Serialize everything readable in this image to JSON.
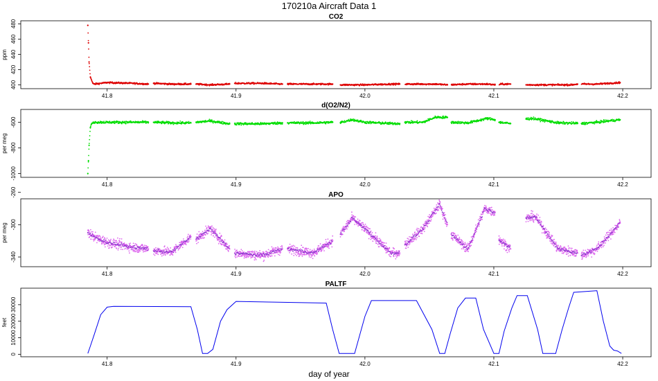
{
  "figure": {
    "title": "170210a   Aircraft Data 1",
    "xlabel": "day of year"
  },
  "chart_data": [
    {
      "type": "scatter",
      "title": "CO2",
      "ylabel": "ppm",
      "color": "#dd0000",
      "xlim": [
        41.733,
        42.222
      ],
      "ylim": [
        395,
        484
      ],
      "x_ticks": [
        "41.8",
        "41.9",
        "42.0",
        "42.1",
        "42.2"
      ],
      "y_ticks": [
        "400",
        "420",
        "440",
        "460",
        "480"
      ],
      "series": [
        {
          "x": [
            41.785,
            41.7855,
            41.786,
            41.787,
            41.789,
            41.79,
            41.8,
            41.82,
            41.832,
            41.836,
            41.85,
            41.865,
            41.869,
            41.88,
            41.895,
            41.899,
            41.92,
            41.936,
            41.94,
            41.96,
            41.975,
            41.981,
            42.0,
            42.02,
            42.027,
            42.04,
            42.055,
            42.064,
            42.08,
            42.095,
            42.101,
            42.106,
            42.113,
            42.125,
            42.14,
            42.16,
            42.165,
            42.18,
            42.198
          ],
          "y": [
            478,
            455,
            430,
            410,
            402,
            401,
            403,
            402,
            401,
            402,
            401,
            401,
            401,
            400,
            401,
            402,
            402,
            401,
            401,
            401,
            401,
            400,
            400,
            401,
            401,
            401,
            401,
            400,
            401,
            401,
            400,
            401,
            401,
            400,
            400,
            400,
            401,
            401,
            403
          ]
        }
      ],
      "gaps": [
        [
          41.832,
          41.836
        ],
        [
          41.865,
          41.869
        ],
        [
          41.895,
          41.899
        ],
        [
          41.936,
          41.94
        ],
        [
          41.975,
          41.981
        ],
        [
          42.027,
          42.031
        ],
        [
          42.064,
          42.067
        ],
        [
          42.101,
          42.104
        ],
        [
          42.113,
          42.125
        ],
        [
          42.165,
          42.168
        ]
      ]
    },
    {
      "type": "scatter",
      "title": "d(O2/N2)",
      "ylabel": "per meg",
      "color": "#00dd00",
      "xlim": [
        41.733,
        42.222
      ],
      "ylim": [
        -1030,
        -500
      ],
      "x_ticks": [
        "41.8",
        "41.9",
        "42.0",
        "42.1",
        "42.2"
      ],
      "y_ticks": [
        "-1000",
        "-800",
        "-600"
      ],
      "series": [
        {
          "x": [
            41.785,
            41.7855,
            41.786,
            41.787,
            41.788,
            41.79,
            41.8,
            41.82,
            41.832,
            41.836,
            41.85,
            41.865,
            41.869,
            41.88,
            41.895,
            41.899,
            41.92,
            41.936,
            41.94,
            41.96,
            41.975,
            41.981,
            41.99,
            42.0,
            42.02,
            42.027,
            42.031,
            42.045,
            42.055,
            42.064,
            42.067,
            42.08,
            42.095,
            42.101,
            42.104,
            42.113,
            42.125,
            42.13,
            42.15,
            42.165,
            42.168,
            42.18,
            42.198
          ],
          "y": [
            -1000,
            -900,
            -780,
            -640,
            -610,
            -600,
            -600,
            -600,
            -600,
            -600,
            -605,
            -605,
            -600,
            -590,
            -612,
            -612,
            -612,
            -605,
            -605,
            -605,
            -600,
            -602,
            -580,
            -600,
            -610,
            -610,
            -600,
            -600,
            -560,
            -562,
            -600,
            -605,
            -570,
            -580,
            -600,
            -610,
            -575,
            -570,
            -605,
            -608,
            -610,
            -600,
            -580
          ]
        }
      ],
      "gaps": [
        [
          41.832,
          41.836
        ],
        [
          41.865,
          41.869
        ],
        [
          41.895,
          41.899
        ],
        [
          41.936,
          41.94
        ],
        [
          41.975,
          41.981
        ],
        [
          42.027,
          42.031
        ],
        [
          42.064,
          42.067
        ],
        [
          42.101,
          42.104
        ],
        [
          42.113,
          42.125
        ],
        [
          42.165,
          42.168
        ]
      ]
    },
    {
      "type": "scatter",
      "title": "APO",
      "ylabel": "per meg",
      "color": "#dd66ee",
      "xlim": [
        41.733,
        42.222
      ],
      "ylim": [
        -352,
        -268
      ],
      "x_ticks": [
        "41.8",
        "41.9",
        "42.0",
        "42.1",
        "42.2"
      ],
      "y_ticks": [
        "-340",
        "-300",
        "-260"
      ],
      "series": [
        {
          "x": [
            41.785,
            41.79,
            41.8,
            41.82,
            41.832,
            41.836,
            41.85,
            41.865,
            41.869,
            41.88,
            41.895,
            41.899,
            41.92,
            41.936,
            41.94,
            41.96,
            41.975,
            41.981,
            41.99,
            42.0,
            42.02,
            42.027,
            42.031,
            42.045,
            42.058,
            42.064,
            42.067,
            42.08,
            42.093,
            42.101,
            42.104,
            42.113,
            42.125,
            42.132,
            42.15,
            42.165,
            42.168,
            42.18,
            42.198
          ],
          "y": [
            -310,
            -315,
            -322,
            -328,
            -330,
            -332,
            -334,
            -315,
            -318,
            -305,
            -330,
            -335,
            -338,
            -330,
            -330,
            -335,
            -320,
            -312,
            -292,
            -305,
            -335,
            -335,
            -325,
            -305,
            -275,
            -300,
            -312,
            -330,
            -280,
            -285,
            -318,
            -330,
            -292,
            -290,
            -330,
            -335,
            -338,
            -330,
            -298
          ]
        }
      ],
      "gaps": [
        [
          41.832,
          41.836
        ],
        [
          41.865,
          41.869
        ],
        [
          41.895,
          41.899
        ],
        [
          41.936,
          41.94
        ],
        [
          41.975,
          41.981
        ],
        [
          42.027,
          42.031
        ],
        [
          42.064,
          42.067
        ],
        [
          42.101,
          42.104
        ],
        [
          42.113,
          42.125
        ],
        [
          42.165,
          42.168
        ]
      ]
    },
    {
      "type": "line",
      "title": "PALTF",
      "ylabel": "feet",
      "color": "#0000ee",
      "xlim": [
        41.733,
        42.222
      ],
      "ylim": [
        -1500,
        40000
      ],
      "x_ticks": [
        "41.8",
        "41.9",
        "42.0",
        "42.1",
        "42.2"
      ],
      "y_ticks": [
        "0",
        "10000",
        "20000",
        "30000"
      ],
      "series": [
        {
          "x": [
            41.785,
            41.787,
            41.79,
            41.795,
            41.8,
            41.805,
            41.865,
            41.87,
            41.874,
            41.878,
            41.882,
            41.888,
            41.893,
            41.9,
            41.97,
            41.975,
            41.98,
            41.986,
            41.992,
            42.0,
            42.005,
            42.04,
            42.052,
            42.058,
            42.062,
            42.066,
            42.072,
            42.078,
            42.086,
            42.092,
            42.1,
            42.104,
            42.108,
            42.114,
            42.118,
            42.126,
            42.134,
            42.138,
            42.142,
            42.148,
            42.153,
            42.158,
            42.162,
            42.18,
            42.185,
            42.19,
            42.193,
            42.196,
            42.199
          ],
          "y": [
            500,
            5000,
            12000,
            24000,
            28500,
            29000,
            28800,
            15000,
            500,
            500,
            3000,
            20000,
            27000,
            32000,
            31000,
            15000,
            500,
            500,
            500,
            23000,
            32500,
            32500,
            15000,
            500,
            500,
            12000,
            28000,
            34000,
            34000,
            15000,
            500,
            500,
            14000,
            28000,
            35500,
            35500,
            15000,
            500,
            500,
            500,
            15000,
            28000,
            37500,
            38500,
            20000,
            5000,
            2500,
            2000,
            500
          ]
        }
      ]
    }
  ]
}
